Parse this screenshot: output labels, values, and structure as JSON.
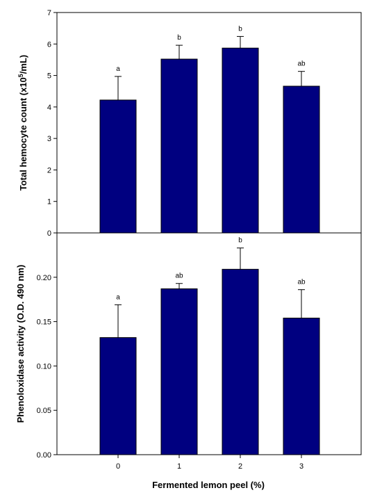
{
  "colors": {
    "bar_fill": "#000080",
    "axis": "#000000",
    "background": "#ffffff"
  },
  "shared_xlabel": "Fermented lemon peel  (%)",
  "chart_data": [
    {
      "type": "bar",
      "title": "",
      "categories": [
        "0",
        "1",
        "2",
        "3"
      ],
      "values": [
        4.22,
        5.52,
        5.87,
        4.66
      ],
      "errors": [
        0.75,
        0.44,
        0.37,
        0.47
      ],
      "significance_letters": [
        "a",
        "b",
        "b",
        "ab"
      ],
      "ylabel_prefix": "Total hemocyte count (x10",
      "ylabel_sup": "5",
      "ylabel_suffix": "/mL)",
      "xlabel": "",
      "ylim": [
        0,
        7
      ],
      "yticks": [
        0,
        1,
        2,
        3,
        4,
        5,
        6,
        7
      ],
      "ytick_labels": [
        "0",
        "1",
        "2",
        "3",
        "4",
        "5",
        "6",
        "7"
      ],
      "grid": false,
      "show_xtick_labels": false
    },
    {
      "type": "bar",
      "title": "",
      "categories": [
        "0",
        "1",
        "2",
        "3"
      ],
      "values": [
        0.132,
        0.187,
        0.209,
        0.154
      ],
      "errors": [
        0.037,
        0.006,
        0.024,
        0.032
      ],
      "significance_letters": [
        "a",
        "ab",
        "b",
        "ab"
      ],
      "ylabel": "Phenoloxidase activity (O.D. 490 nm)",
      "xlabel": "Fermented lemon peel  (%)",
      "ylim": [
        0,
        0.25
      ],
      "yticks": [
        0.0,
        0.05,
        0.1,
        0.15,
        0.2
      ],
      "ytick_labels": [
        "0.00",
        "0.05",
        "0.10",
        "0.15",
        "0.20"
      ],
      "grid": false,
      "show_xtick_labels": true
    }
  ]
}
